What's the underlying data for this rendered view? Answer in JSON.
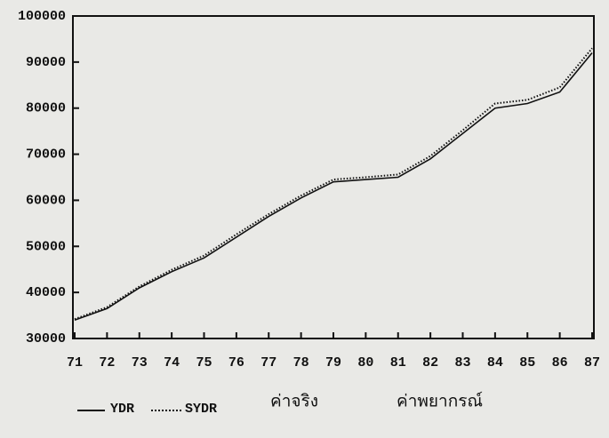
{
  "chart_data": {
    "type": "line",
    "categories": [
      "71",
      "72",
      "73",
      "74",
      "75",
      "76",
      "77",
      "78",
      "79",
      "80",
      "81",
      "82",
      "83",
      "84",
      "85",
      "86",
      "87"
    ],
    "series": [
      {
        "name": "YDR",
        "color": "#111111",
        "style": "solid",
        "values": [
          34000,
          36500,
          41000,
          44500,
          47500,
          52000,
          56500,
          60500,
          64000,
          64500,
          65000,
          69000,
          74500,
          80000,
          81000,
          83500,
          92000
        ]
      },
      {
        "name": "SYDR",
        "color": "#111111",
        "style": "dotted",
        "values": [
          34200,
          36800,
          41300,
          44900,
          48000,
          52600,
          57000,
          61000,
          64500,
          65000,
          65600,
          69600,
          75200,
          81000,
          81800,
          84500,
          93000
        ]
      }
    ],
    "annotations": [
      "ค่าจริง",
      "ค่าพยากรณ์"
    ],
    "ylim": [
      30000,
      100000
    ],
    "yticks": [
      30000,
      40000,
      50000,
      60000,
      70000,
      80000,
      90000,
      100000
    ],
    "grid": false
  }
}
